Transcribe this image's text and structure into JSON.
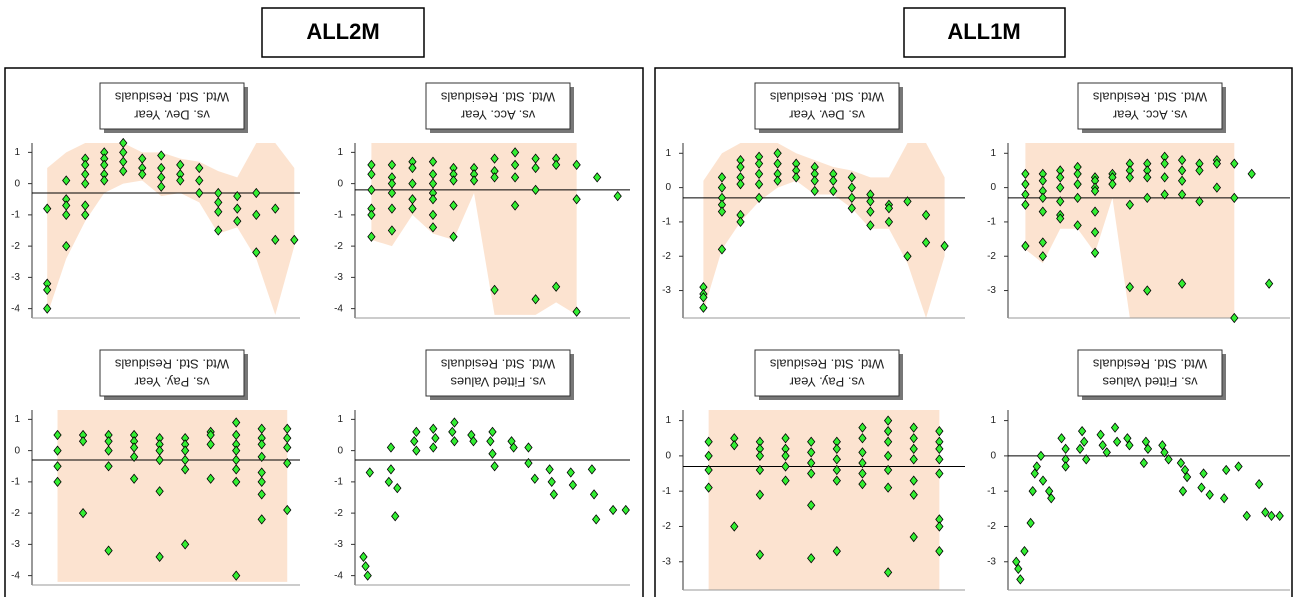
{
  "panels": [
    "ALL2M",
    "ALL1M"
  ],
  "chart_data": [
    {
      "type": "scatter",
      "title": "Wtd. Std. Residuals",
      "subtitle": "vs. Dev. Year",
      "color": "#33ee33",
      "band_color": "#fbdcc4",
      "ref_line": -0.3,
      "xlim": [
        0.2,
        14.3
      ],
      "ylim": [
        -4.3,
        1.3
      ],
      "yticks": [
        1,
        0,
        -1,
        -2,
        -3,
        -4
      ],
      "band": {
        "x": [
          1,
          2,
          3,
          4,
          5,
          6,
          7,
          8,
          9,
          10,
          11,
          12,
          13,
          14
        ],
        "lower": [
          -4.2,
          -2.4,
          -1.2,
          -0.3,
          0.0,
          0.1,
          -0.4,
          -0.3,
          -0.6,
          -1.6,
          -1.4,
          -2.4,
          -4.2,
          -2.0
        ],
        "upper": [
          0.5,
          1.0,
          1.3,
          1.3,
          1.3,
          1.0,
          1.0,
          0.8,
          0.7,
          0.4,
          0.2,
          1.3,
          1.3,
          0.5
        ]
      },
      "x": [
        1,
        1,
        1,
        1,
        2,
        2,
        2,
        2,
        2,
        3,
        3,
        3,
        3,
        3,
        3,
        4,
        4,
        4,
        4,
        4,
        5,
        5,
        5,
        5,
        6,
        6,
        6,
        7,
        7,
        7,
        7,
        8,
        8,
        8,
        9,
        9,
        9,
        10,
        10,
        10,
        10,
        11,
        11,
        11,
        12,
        12,
        12,
        13,
        13,
        14
      ],
      "y": [
        -0.8,
        -3.2,
        -3.4,
        -4.0,
        0.1,
        -0.5,
        -0.7,
        -1.0,
        -2.0,
        0.8,
        0.6,
        0.3,
        0.0,
        -0.7,
        -1.0,
        1.0,
        0.8,
        0.6,
        0.3,
        0.1,
        1.3,
        1.0,
        0.7,
        0.4,
        0.8,
        0.5,
        0.3,
        0.9,
        0.5,
        0.2,
        -0.1,
        0.6,
        0.3,
        0.1,
        0.5,
        0.1,
        -0.3,
        -0.3,
        -0.6,
        -0.9,
        -1.5,
        -0.4,
        -0.8,
        -1.2,
        -0.3,
        -1.0,
        -2.2,
        -0.8,
        -1.8,
        -1.8
      ]
    },
    {
      "type": "scatter",
      "title": "Wtd. Std. Residuals",
      "subtitle": "vs. Acc. Year",
      "color": "#33ee33",
      "band_color": "#fbdcc4",
      "ref_line": -0.2,
      "xlim": [
        0.2,
        13.6
      ],
      "ylim": [
        -4.3,
        1.3
      ],
      "yticks": [
        1,
        0,
        -1,
        -2,
        -3,
        -4
      ],
      "band": {
        "x": [
          1,
          2,
          3,
          4,
          5,
          6,
          7,
          8,
          9,
          10,
          11
        ],
        "lower": [
          -1.8,
          -2.0,
          -1.0,
          -1.6,
          -1.8,
          -0.3,
          -4.2,
          -4.2,
          -4.2,
          -3.8,
          -4.2
        ],
        "upper": [
          1.3,
          1.3,
          1.3,
          1.3,
          1.3,
          1.3,
          1.3,
          1.3,
          1.3,
          1.3,
          1.3
        ]
      },
      "x": [
        1,
        1,
        1,
        1,
        1,
        1,
        2,
        2,
        2,
        2,
        2,
        2,
        3,
        3,
        3,
        3,
        3,
        4,
        4,
        4,
        4,
        4,
        4,
        4,
        5,
        5,
        5,
        5,
        5,
        6,
        6,
        6,
        7,
        7,
        7,
        7,
        8,
        8,
        8,
        8,
        9,
        9,
        9,
        9,
        10,
        10,
        10,
        11,
        11,
        11,
        12,
        13
      ],
      "y": [
        0.6,
        0.3,
        -0.2,
        -0.8,
        -1.0,
        -1.7,
        0.6,
        0.2,
        0.0,
        -0.3,
        -0.8,
        -1.5,
        0.7,
        0.5,
        0.0,
        -0.5,
        -0.8,
        0.7,
        0.3,
        0.0,
        -0.3,
        -0.5,
        -1.0,
        -1.4,
        0.5,
        0.3,
        0.1,
        -0.7,
        -1.7,
        0.5,
        0.3,
        0.1,
        0.8,
        0.4,
        0.2,
        -3.4,
        1.0,
        0.6,
        0.2,
        -0.7,
        0.8,
        0.5,
        -0.2,
        -3.7,
        0.8,
        0.6,
        -3.3,
        0.6,
        -0.5,
        -4.1,
        0.2,
        -0.4
      ]
    },
    {
      "type": "scatter",
      "title": "Wtd. Std. Residuals",
      "subtitle": "vs. Pay. Year",
      "color": "#33ee33",
      "band_color": "#fbdcc4",
      "ref_line": -0.3,
      "xlim": [
        0,
        10.5
      ],
      "ylim": [
        -4.3,
        1.3
      ],
      "yticks": [
        1,
        0,
        -1,
        -2,
        -3,
        -4
      ],
      "band": {
        "x": [
          1,
          2,
          3,
          4,
          5,
          6,
          7,
          8,
          9,
          10
        ],
        "lower": [
          -4.2,
          -4.2,
          -4.2,
          -4.2,
          -4.2,
          -4.2,
          -4.2,
          -4.2,
          -4.2,
          -4.2
        ],
        "upper": [
          1.3,
          1.3,
          1.3,
          1.3,
          1.3,
          1.3,
          1.3,
          1.3,
          1.3,
          1.3
        ]
      },
      "x": [
        1,
        1,
        1,
        1,
        2,
        2,
        2,
        3,
        3,
        3,
        3,
        3,
        4,
        4,
        4,
        4,
        4,
        5,
        5,
        5,
        5,
        5,
        5,
        6,
        6,
        6,
        6,
        6,
        6,
        7,
        7,
        7,
        7,
        8,
        8,
        8,
        8,
        8,
        8,
        8,
        8,
        9,
        9,
        9,
        9,
        9,
        9,
        9,
        9,
        10,
        10,
        10,
        10,
        10
      ],
      "y": [
        0.5,
        0.0,
        -0.5,
        -1.0,
        0.5,
        0.3,
        -2.0,
        0.5,
        0.3,
        0.0,
        -0.5,
        -3.2,
        0.5,
        0.3,
        0.1,
        -0.2,
        -0.9,
        0.4,
        0.2,
        0.0,
        -0.3,
        -1.3,
        -3.4,
        0.4,
        0.2,
        0.0,
        -0.3,
        -0.6,
        -3.0,
        0.6,
        0.5,
        0.2,
        -0.9,
        0.9,
        0.5,
        0.2,
        0.0,
        -0.3,
        -0.6,
        -1.0,
        -4.0,
        0.7,
        0.4,
        0.2,
        -0.2,
        -0.7,
        -1.0,
        -1.4,
        -2.2,
        0.7,
        0.4,
        0.1,
        -0.4,
        -1.9
      ]
    },
    {
      "type": "scatter",
      "title": "Wtd. Std. Residuals",
      "subtitle": "vs. Fitted Values",
      "color": "#33ee33",
      "ref_line": -0.3,
      "xlim": [
        -0.2,
        12.8
      ],
      "ylim": [
        -4.3,
        1.3
      ],
      "yticks": [
        1,
        0,
        -1,
        -2,
        -3,
        -4
      ],
      "x": [
        0.2,
        0.3,
        0.4,
        0.5,
        1.4,
        1.5,
        1.5,
        1.7,
        1.8,
        2.7,
        2.6,
        2.7,
        3.5,
        3.6,
        3.5,
        4.5,
        4.4,
        4.5,
        5.3,
        5.4,
        6.3,
        6.2,
        6.3,
        6.4,
        7.2,
        7.3,
        8.0,
        8.0,
        8.3,
        9.0,
        9.1,
        9.2,
        10.0,
        10.1,
        11.0,
        11.1,
        11.2,
        12.0,
        12.6
      ],
      "y": [
        -3.4,
        -3.7,
        -4.0,
        -0.7,
        -1.0,
        0.1,
        -0.6,
        -2.1,
        -1.2,
        0.6,
        0.3,
        0.0,
        0.7,
        0.4,
        0.1,
        0.9,
        0.6,
        0.3,
        0.5,
        0.3,
        0.6,
        0.3,
        -0.1,
        -0.5,
        0.3,
        0.1,
        0.1,
        -0.4,
        -0.9,
        -0.6,
        -1.0,
        -1.4,
        -0.7,
        -1.1,
        -0.6,
        -1.4,
        -2.2,
        -1.9,
        -1.9
      ]
    },
    {
      "type": "scatter",
      "title": "Wtd. Std. Residuals",
      "subtitle": "vs. Dev. Year",
      "color": "#33ee33",
      "band_color": "#fbdcc4",
      "ref_line": -0.3,
      "xlim": [
        -0.1,
        15.1
      ],
      "ylim": [
        -3.8,
        1.3
      ],
      "yticks": [
        1,
        0,
        -1,
        -2,
        -3
      ],
      "band": {
        "x": [
          1,
          2,
          3,
          4,
          5,
          6,
          7,
          8,
          9,
          10,
          11,
          12,
          13,
          14
        ],
        "lower": [
          -3.6,
          -1.8,
          -1.0,
          -0.4,
          0.0,
          0.2,
          -0.2,
          -0.2,
          -0.6,
          -1.2,
          -1.2,
          -2.2,
          -3.8,
          -2.0
        ],
        "upper": [
          0.2,
          1.0,
          1.3,
          1.3,
          1.3,
          1.0,
          0.8,
          0.6,
          0.5,
          0.3,
          0.3,
          1.3,
          1.3,
          0.3
        ]
      },
      "x": [
        1,
        1,
        1,
        1,
        2,
        2,
        2,
        2,
        2,
        2,
        3,
        3,
        3,
        3,
        3,
        3,
        4,
        4,
        4,
        4,
        4,
        5,
        5,
        5,
        5,
        6,
        6,
        6,
        7,
        7,
        7,
        7,
        8,
        8,
        8,
        9,
        9,
        9,
        9,
        10,
        10,
        10,
        10,
        11,
        11,
        11,
        12,
        12,
        13,
        13,
        14
      ],
      "y": [
        -2.9,
        -3.1,
        -3.2,
        -3.5,
        0.3,
        0.0,
        -0.3,
        -0.5,
        -0.7,
        -1.8,
        0.8,
        0.6,
        0.3,
        0.1,
        -0.8,
        -1.0,
        0.9,
        0.7,
        0.4,
        0.1,
        -0.3,
        1.0,
        0.7,
        0.4,
        0.2,
        0.7,
        0.5,
        0.3,
        0.6,
        0.4,
        0.2,
        -0.1,
        0.4,
        0.2,
        -0.1,
        0.3,
        0.0,
        -0.3,
        -0.6,
        -0.2,
        -0.4,
        -0.7,
        -1.1,
        -0.5,
        -0.6,
        -1.0,
        -0.4,
        -2.0,
        -0.8,
        -1.6,
        -1.7
      ]
    },
    {
      "type": "scatter",
      "title": "Wtd. Std. Residuals",
      "subtitle": "vs. Acc. Year",
      "color": "#33ee33",
      "band_color": "#fbdcc4",
      "ref_line": -0.3,
      "xlim": [
        0,
        16.2
      ],
      "ylim": [
        -3.8,
        1.3
      ],
      "yticks": [
        1,
        0,
        -1,
        -2,
        -3
      ],
      "band": {
        "x": [
          1,
          2,
          3,
          4,
          5,
          6,
          7,
          8,
          9,
          10,
          11,
          12,
          13
        ],
        "lower": [
          -1.8,
          -2.2,
          -1.2,
          -1.2,
          -1.9,
          -0.3,
          -3.8,
          -3.8,
          -3.8,
          -3.8,
          -3.8,
          -3.8,
          -3.8
        ],
        "upper": [
          1.3,
          1.3,
          1.3,
          1.3,
          1.3,
          1.3,
          1.3,
          1.3,
          1.3,
          1.3,
          1.3,
          1.3,
          1.3
        ]
      },
      "x": [
        1,
        1,
        1,
        1,
        1,
        2,
        2,
        2,
        2,
        2,
        2,
        2,
        3,
        3,
        3,
        3,
        3,
        3,
        4,
        4,
        4,
        4,
        4,
        5,
        5,
        5,
        5,
        5,
        5,
        5,
        6,
        6,
        6,
        7,
        7,
        7,
        7,
        7,
        8,
        8,
        8,
        8,
        8,
        9,
        9,
        9,
        9,
        10,
        10,
        10,
        10,
        10,
        11,
        11,
        11,
        12,
        12,
        12,
        13,
        13,
        13,
        14,
        15
      ],
      "y": [
        0.4,
        0.1,
        -0.2,
        -0.5,
        -1.7,
        0.4,
        0.2,
        -0.1,
        -0.3,
        -0.7,
        -1.6,
        -2.0,
        0.5,
        0.3,
        0.0,
        -0.4,
        -0.8,
        -0.9,
        0.6,
        0.4,
        0.1,
        -0.3,
        -1.1,
        0.3,
        0.2,
        0.0,
        -0.1,
        -0.7,
        -1.3,
        -1.9,
        0.4,
        0.3,
        0.1,
        0.7,
        0.5,
        0.3,
        -0.5,
        -2.9,
        0.7,
        0.5,
        0.3,
        -0.3,
        -3.0,
        0.9,
        0.7,
        0.3,
        -0.2,
        0.8,
        0.5,
        0.2,
        -0.2,
        -2.8,
        0.7,
        0.5,
        -0.4,
        0.8,
        0.7,
        0.0,
        0.7,
        -0.3,
        -3.8,
        0.4,
        -2.8
      ]
    },
    {
      "type": "scatter",
      "title": "Wtd. Std. Residuals",
      "subtitle": "vs. Pay. Year",
      "color": "#33ee33",
      "band_color": "#fbdcc4",
      "ref_line": -0.3,
      "xlim": [
        0,
        11
      ],
      "ylim": [
        -3.8,
        1.3
      ],
      "yticks": [
        1,
        0,
        -1,
        -2,
        -3
      ],
      "band": {
        "x": [
          1,
          2,
          3,
          4,
          5,
          6,
          7,
          8,
          9,
          10
        ],
        "lower": [
          -3.8,
          -3.8,
          -3.8,
          -3.8,
          -3.8,
          -3.8,
          -3.8,
          -3.8,
          -3.8,
          -3.8
        ],
        "upper": [
          1.3,
          1.3,
          1.3,
          1.3,
          1.3,
          1.3,
          1.3,
          1.3,
          1.3,
          1.3
        ]
      },
      "x": [
        1,
        1,
        1,
        1,
        2,
        2,
        2,
        3,
        3,
        3,
        3,
        3,
        3,
        4,
        4,
        4,
        4,
        4,
        5,
        5,
        5,
        5,
        5,
        5,
        6,
        6,
        6,
        6,
        6,
        6,
        7,
        7,
        7,
        7,
        7,
        7,
        8,
        8,
        8,
        8,
        8,
        8,
        8,
        9,
        9,
        9,
        9,
        9,
        9,
        9,
        10,
        10,
        10,
        10,
        10,
        10,
        10,
        10
      ],
      "y": [
        0.4,
        0.0,
        -0.4,
        -0.9,
        0.5,
        0.3,
        -2.0,
        0.4,
        0.2,
        0.0,
        -0.4,
        -1.1,
        -2.8,
        0.5,
        0.2,
        0.0,
        -0.3,
        -0.7,
        0.4,
        0.1,
        -0.2,
        -0.5,
        -1.4,
        -2.9,
        0.4,
        0.2,
        -0.1,
        -0.4,
        -0.7,
        -2.7,
        0.8,
        0.5,
        0.1,
        -0.2,
        -0.5,
        -0.8,
        1.0,
        0.7,
        0.4,
        0.0,
        -0.4,
        -0.9,
        -3.3,
        0.8,
        0.5,
        0.2,
        -0.1,
        -0.7,
        -1.1,
        -2.3,
        0.7,
        0.4,
        0.2,
        -0.1,
        -0.5,
        -1.8,
        -2.0,
        -2.7
      ]
    },
    {
      "type": "scatter",
      "title": "Wtd. Std. Residuals",
      "subtitle": "vs. Fitted Values",
      "color": "#33ee33",
      "ref_line": 0,
      "xlim": [
        -0.2,
        13.5
      ],
      "ylim": [
        -3.8,
        1.3
      ],
      "yticks": [
        1,
        0,
        -1,
        -2,
        -3
      ],
      "x": [
        0.2,
        0.3,
        0.4,
        0.6,
        0.9,
        1.0,
        1.1,
        1.2,
        1.4,
        1.5,
        1.8,
        1.9,
        2.4,
        2.6,
        2.6,
        2.6,
        3.4,
        3.5,
        3.3,
        3.6,
        4.3,
        4.4,
        4.6,
        5.0,
        5.1,
        5.6,
        5.7,
        6.5,
        6.6,
        6.4,
        7.3,
        7.4,
        7.6,
        8.2,
        8.4,
        8.5,
        8.3,
        9.3,
        9.2,
        9.6,
        10.4,
        10.3,
        11.4,
        11.0,
        12.0,
        12.3,
        12.6,
        13.0
      ],
      "y": [
        -3.0,
        -3.2,
        -3.5,
        -2.7,
        -1.9,
        -1.0,
        -0.5,
        -0.3,
        0.0,
        -0.7,
        -1.0,
        -1.2,
        0.5,
        0.2,
        -0.1,
        -0.3,
        0.7,
        0.4,
        0.2,
        -0.1,
        0.6,
        0.3,
        0.1,
        0.8,
        0.4,
        0.5,
        0.3,
        0.4,
        0.2,
        -0.2,
        0.3,
        0.1,
        -0.1,
        -0.2,
        -0.4,
        -0.6,
        -1.0,
        -0.5,
        -0.9,
        -1.1,
        -0.4,
        -1.2,
        -1.7,
        -0.3,
        -0.8,
        -1.6,
        -1.7,
        -1.7
      ]
    }
  ]
}
